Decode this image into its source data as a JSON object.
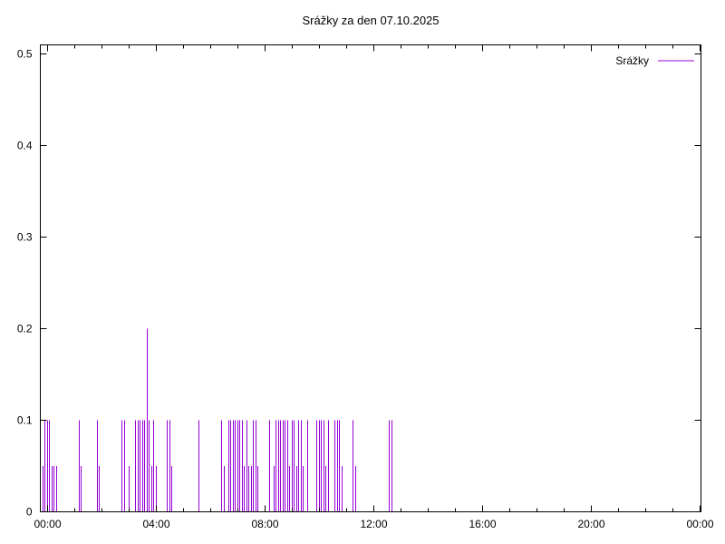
{
  "window": {
    "title": "Srážky za den 07.10.2025"
  },
  "chart_data": {
    "type": "bar",
    "style": "impulses",
    "title": "Srážky za den 07.10.2025",
    "background": "#ffffff",
    "border_color": "#000000",
    "grid": false,
    "legend": {
      "position": "top-right-inside",
      "entries": [
        {
          "label": "Srážky",
          "color": "#9400d3"
        }
      ]
    },
    "x_axis": {
      "kind": "time-of-day",
      "label": "",
      "range_minutes": [
        -15,
        1443
      ],
      "major_tick_labels": [
        "00:00",
        "04:00",
        "08:00",
        "12:00",
        "16:00",
        "20:00",
        "00:00"
      ],
      "major_tick_minutes": [
        0,
        240,
        480,
        720,
        960,
        1200,
        1440
      ],
      "minor_tick_interval_minutes": 60
    },
    "y_axis": {
      "label": "",
      "range": [
        0,
        0.51
      ],
      "ticks": [
        0,
        0.1,
        0.2,
        0.3,
        0.4,
        0.5
      ],
      "tick_labels": [
        "0",
        "0.1",
        "0.2",
        "0.3",
        "0.4",
        "0.5"
      ]
    },
    "series": [
      {
        "name": "Srážky",
        "color": "#9400d3",
        "point_times": [
          "23:50",
          "23:55",
          "00:00",
          "00:05",
          "00:10",
          "00:15",
          "00:20",
          "01:10",
          "01:15",
          "01:50",
          "01:55",
          "02:45",
          "02:50",
          "03:00",
          "03:15",
          "03:20",
          "03:25",
          "03:30",
          "03:35",
          "03:40",
          "03:45",
          "03:50",
          "03:55",
          "04:00",
          "04:25",
          "04:30",
          "04:35",
          "05:35",
          "06:25",
          "06:30",
          "06:40",
          "06:45",
          "06:50",
          "06:55",
          "07:00",
          "07:05",
          "07:10",
          "07:15",
          "07:20",
          "07:25",
          "07:30",
          "07:35",
          "07:40",
          "07:45",
          "08:10",
          "08:20",
          "08:25",
          "08:30",
          "08:35",
          "08:40",
          "08:45",
          "08:50",
          "08:55",
          "09:00",
          "09:05",
          "09:10",
          "09:15",
          "09:20",
          "09:25",
          "09:35",
          "09:55",
          "10:00",
          "10:05",
          "10:10",
          "10:15",
          "10:20",
          "10:35",
          "10:40",
          "10:45",
          "10:50",
          "11:15",
          "11:20",
          "12:35",
          "12:40"
        ],
        "point_minutes": [
          -10,
          -5,
          0,
          5,
          10,
          15,
          20,
          70,
          75,
          110,
          115,
          165,
          170,
          180,
          195,
          200,
          205,
          210,
          215,
          220,
          225,
          230,
          235,
          240,
          265,
          270,
          275,
          335,
          385,
          390,
          400,
          405,
          410,
          415,
          420,
          425,
          430,
          435,
          440,
          445,
          450,
          455,
          460,
          465,
          490,
          500,
          505,
          510,
          515,
          520,
          525,
          530,
          535,
          540,
          545,
          550,
          555,
          560,
          565,
          575,
          595,
          600,
          605,
          610,
          615,
          620,
          635,
          640,
          645,
          650,
          675,
          680,
          755,
          760
        ],
        "point_values": [
          0.05,
          0.1,
          0.1,
          0.1,
          0.05,
          0.05,
          0.05,
          0.1,
          0.05,
          0.1,
          0.05,
          0.1,
          0.1,
          0.05,
          0.1,
          0.1,
          0.1,
          0.1,
          0.1,
          0.2,
          0.1,
          0.05,
          0.1,
          0.05,
          0.1,
          0.1,
          0.05,
          0.1,
          0.1,
          0.05,
          0.1,
          0.1,
          0.1,
          0.1,
          0.1,
          0.1,
          0.1,
          0.05,
          0.1,
          0.05,
          0.05,
          0.1,
          0.1,
          0.05,
          0.1,
          0.05,
          0.1,
          0.1,
          0.1,
          0.1,
          0.1,
          0.1,
          0.05,
          0.1,
          0.1,
          0.05,
          0.1,
          0.1,
          0.05,
          0.1,
          0.1,
          0.1,
          0.1,
          0.1,
          0.05,
          0.1,
          0.1,
          0.1,
          0.1,
          0.05,
          0.1,
          0.05,
          0.1,
          0.1
        ],
        "max_value": 0.2
      }
    ]
  }
}
